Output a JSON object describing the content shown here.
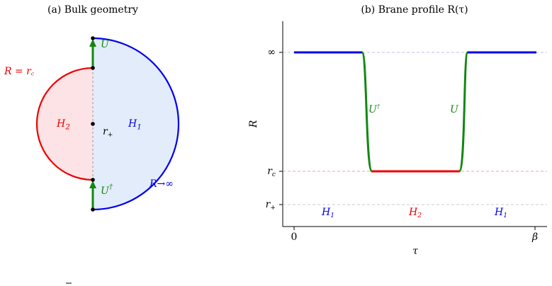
{
  "panel_a": {
    "title": "(a) Bulk geometry",
    "labels": {
      "inner_boundary": {
        "base": "R = r",
        "sub": "c"
      },
      "u": {
        "base": "U"
      },
      "h2": {
        "base": "H",
        "sub": "2"
      },
      "r_plus": {
        "base": "r",
        "sub": "+"
      },
      "h1": {
        "base": "H",
        "sub": "1"
      },
      "u_dagger": {
        "base": "U",
        "sup": "†"
      },
      "outer_boundary": {
        "base": "R→∞"
      }
    }
  },
  "panel_b": {
    "title": "(b) Brane profile R(τ)",
    "y_label": "R",
    "x_label": "τ",
    "yticks": [
      {
        "base": "∞"
      },
      {
        "base": "r",
        "sub": "c"
      },
      {
        "base": "r",
        "sub": "+"
      }
    ],
    "xticks": [
      "0",
      "β"
    ],
    "labels": {
      "u_dagger": {
        "base": "U",
        "sup": "†"
      },
      "u": {
        "base": "U"
      },
      "h1_left": {
        "base": "H",
        "sub": "1"
      },
      "h2": {
        "base": "H",
        "sub": "2"
      },
      "h1_right": {
        "base": "H",
        "sub": "1"
      }
    }
  }
}
